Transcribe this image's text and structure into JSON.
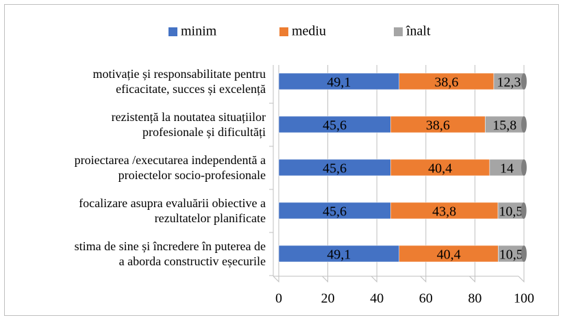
{
  "chart_data": {
    "type": "stacked-barh",
    "categories": [
      "motivație și responsabilitate pentru\neficacitate, succes și excelență",
      "rezistență la noutatea situațiilor\nprofesionale și dificultăți",
      "proiectarea /executarea independentă a\nproiectelor socio-profesionale",
      "focalizare asupra evaluării obiective a\nrezultatelor planificate",
      "stima de sine și încredere în puterea de\na aborda constructiv eșecurile"
    ],
    "series": [
      {
        "name": "minim",
        "color": "#4472c4",
        "values": [
          49.1,
          45.6,
          45.6,
          45.6,
          49.1
        ],
        "value_labels": [
          "49,1",
          "45,6",
          "45,6",
          "45,6",
          "49,1"
        ]
      },
      {
        "name": "mediu",
        "color": "#ed7d31",
        "values": [
          38.6,
          38.6,
          40.4,
          43.8,
          40.4
        ],
        "value_labels": [
          "38,6",
          "38,6",
          "40,4",
          "43,8",
          "40,4"
        ]
      },
      {
        "name": "înalt",
        "color": "#a5a5a5",
        "values": [
          12.3,
          15.8,
          14,
          10.5,
          10.5
        ],
        "value_labels": [
          "12,3",
          "15,8",
          "14",
          "10,5",
          "10,5"
        ]
      }
    ],
    "xlim": [
      0,
      100
    ],
    "xticks": [
      0,
      20,
      40,
      60,
      80,
      100
    ],
    "grid": true,
    "legend": "top"
  }
}
